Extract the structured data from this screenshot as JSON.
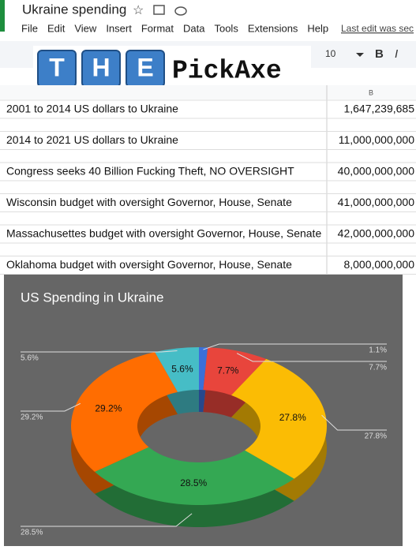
{
  "app": {
    "doc_title": "Ukraine spending",
    "menu": [
      "File",
      "Edit",
      "View",
      "Insert",
      "Format",
      "Data",
      "Tools",
      "Extensions",
      "Help"
    ],
    "last_edit": "Last edit was sec",
    "font_size": "10",
    "bold": "B",
    "italic": "I"
  },
  "logo": {
    "letters": [
      "T",
      "H",
      "E"
    ],
    "text": "PickAxe"
  },
  "sheet": {
    "column_header": "B",
    "rows": [
      [
        "2001 to 2014 US dollars to Ukraine",
        "1,647,239,685"
      ],
      [
        "2014 to 2021 US dollars to Ukraine",
        "11,000,000,000"
      ],
      [
        "Congress seeks 40 Billion Fucking Theft, NO OVERSIGHT",
        "40,000,000,000"
      ],
      [
        "Wisconsin budget with oversight Governor, House, Senate",
        "41,000,000,000"
      ],
      [
        "Massachusettes budget with oversight Governor, House, Senate",
        "42,000,000,000"
      ],
      [
        "Oklahoma budget with oversight Governor, House, Senate",
        "8,000,000,000"
      ]
    ]
  },
  "chart_data": {
    "type": "donut",
    "title": "US Spending in Ukraine",
    "values": [
      1.1,
      7.7,
      27.8,
      28.5,
      29.2,
      5.6
    ],
    "value_labels": [
      "1.1%",
      "7.7%",
      "27.8%",
      "28.5%",
      "29.2%",
      "5.6%"
    ],
    "colors": [
      "#3b6fd8",
      "#e8453c",
      "#fbbc04",
      "#34a853",
      "#ff6d01",
      "#46bdc6"
    ]
  }
}
